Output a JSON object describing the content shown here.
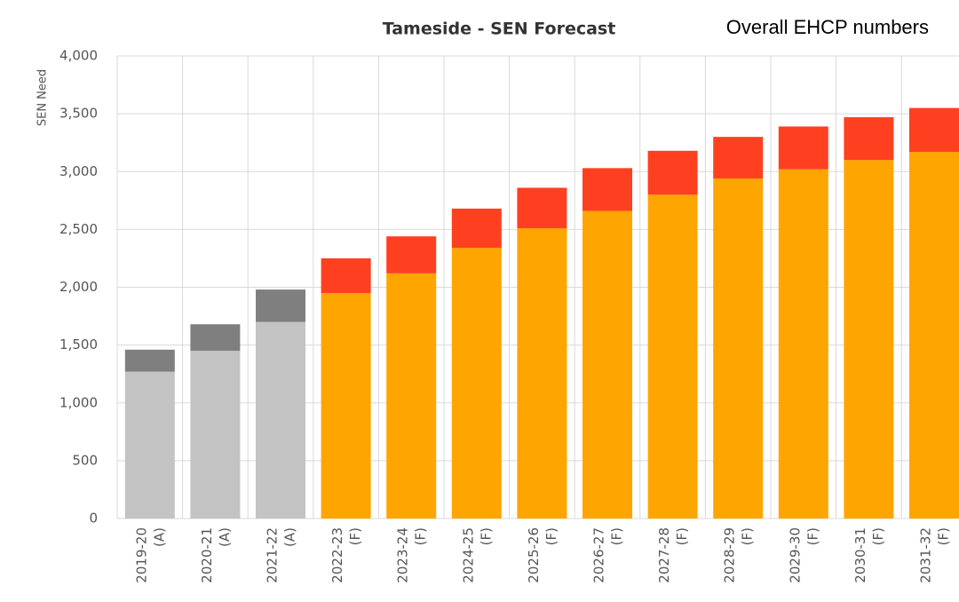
{
  "chart_data": {
    "type": "stacked-bar",
    "title": "Tameside - SEN Forecast",
    "subtitle": "Overall EHCP numbers",
    "y_label": "SEN Need",
    "categories": [
      [
        "2019-20",
        "(A)"
      ],
      [
        "2020-21",
        "(A)"
      ],
      [
        "2021-22",
        "(A)"
      ],
      [
        "2022-23",
        "(F)"
      ],
      [
        "2023-24",
        "(F)"
      ],
      [
        "2024-25",
        "(F)"
      ],
      [
        "2025-26",
        "(F)"
      ],
      [
        "2026-27",
        "(F)"
      ],
      [
        "2027-28",
        "(F)"
      ],
      [
        "2028-29",
        "(F)"
      ],
      [
        "2029-30",
        "(F)"
      ],
      [
        "2030-31",
        "(F)"
      ],
      [
        "2031-32",
        "(F)"
      ]
    ],
    "series": [
      {
        "colors": [
          "#c3c3c3",
          "#c3c3c3",
          "#c3c3c3",
          "#ffa500",
          "#ffa500",
          "#ffa500",
          "#ffa500",
          "#ffa500",
          "#ffa500",
          "#ffa500",
          "#ffa500",
          "#ffa500",
          "#ffa500"
        ],
        "values": [
          1270,
          1450,
          1700,
          1950,
          2120,
          2340,
          2510,
          2660,
          2800,
          2940,
          3020,
          3100,
          3170
        ]
      },
      {
        "colors": [
          "#7f7f7f",
          "#7f7f7f",
          "#7f7f7f",
          "#ff4020",
          "#ff4020",
          "#ff4020",
          "#ff4020",
          "#ff4020",
          "#ff4020",
          "#ff4020",
          "#ff4020",
          "#ff4020",
          "#ff4020"
        ],
        "values": [
          190,
          230,
          280,
          300,
          320,
          340,
          350,
          370,
          380,
          360,
          370,
          370,
          380
        ]
      }
    ],
    "ylim": [
      0,
      4000
    ],
    "yticks": [
      0,
      500,
      {
        "value": 1000,
        "label": "1,000"
      },
      {
        "value": 1500,
        "label": "1,500"
      },
      {
        "value": 2000,
        "label": "2,000"
      },
      {
        "value": 2500,
        "label": "2,500"
      },
      {
        "value": 3000,
        "label": "3,000"
      },
      {
        "value": 3500,
        "label": "3,500"
      },
      {
        "value": 4000,
        "label": "4,000"
      }
    ],
    "grid": true
  }
}
